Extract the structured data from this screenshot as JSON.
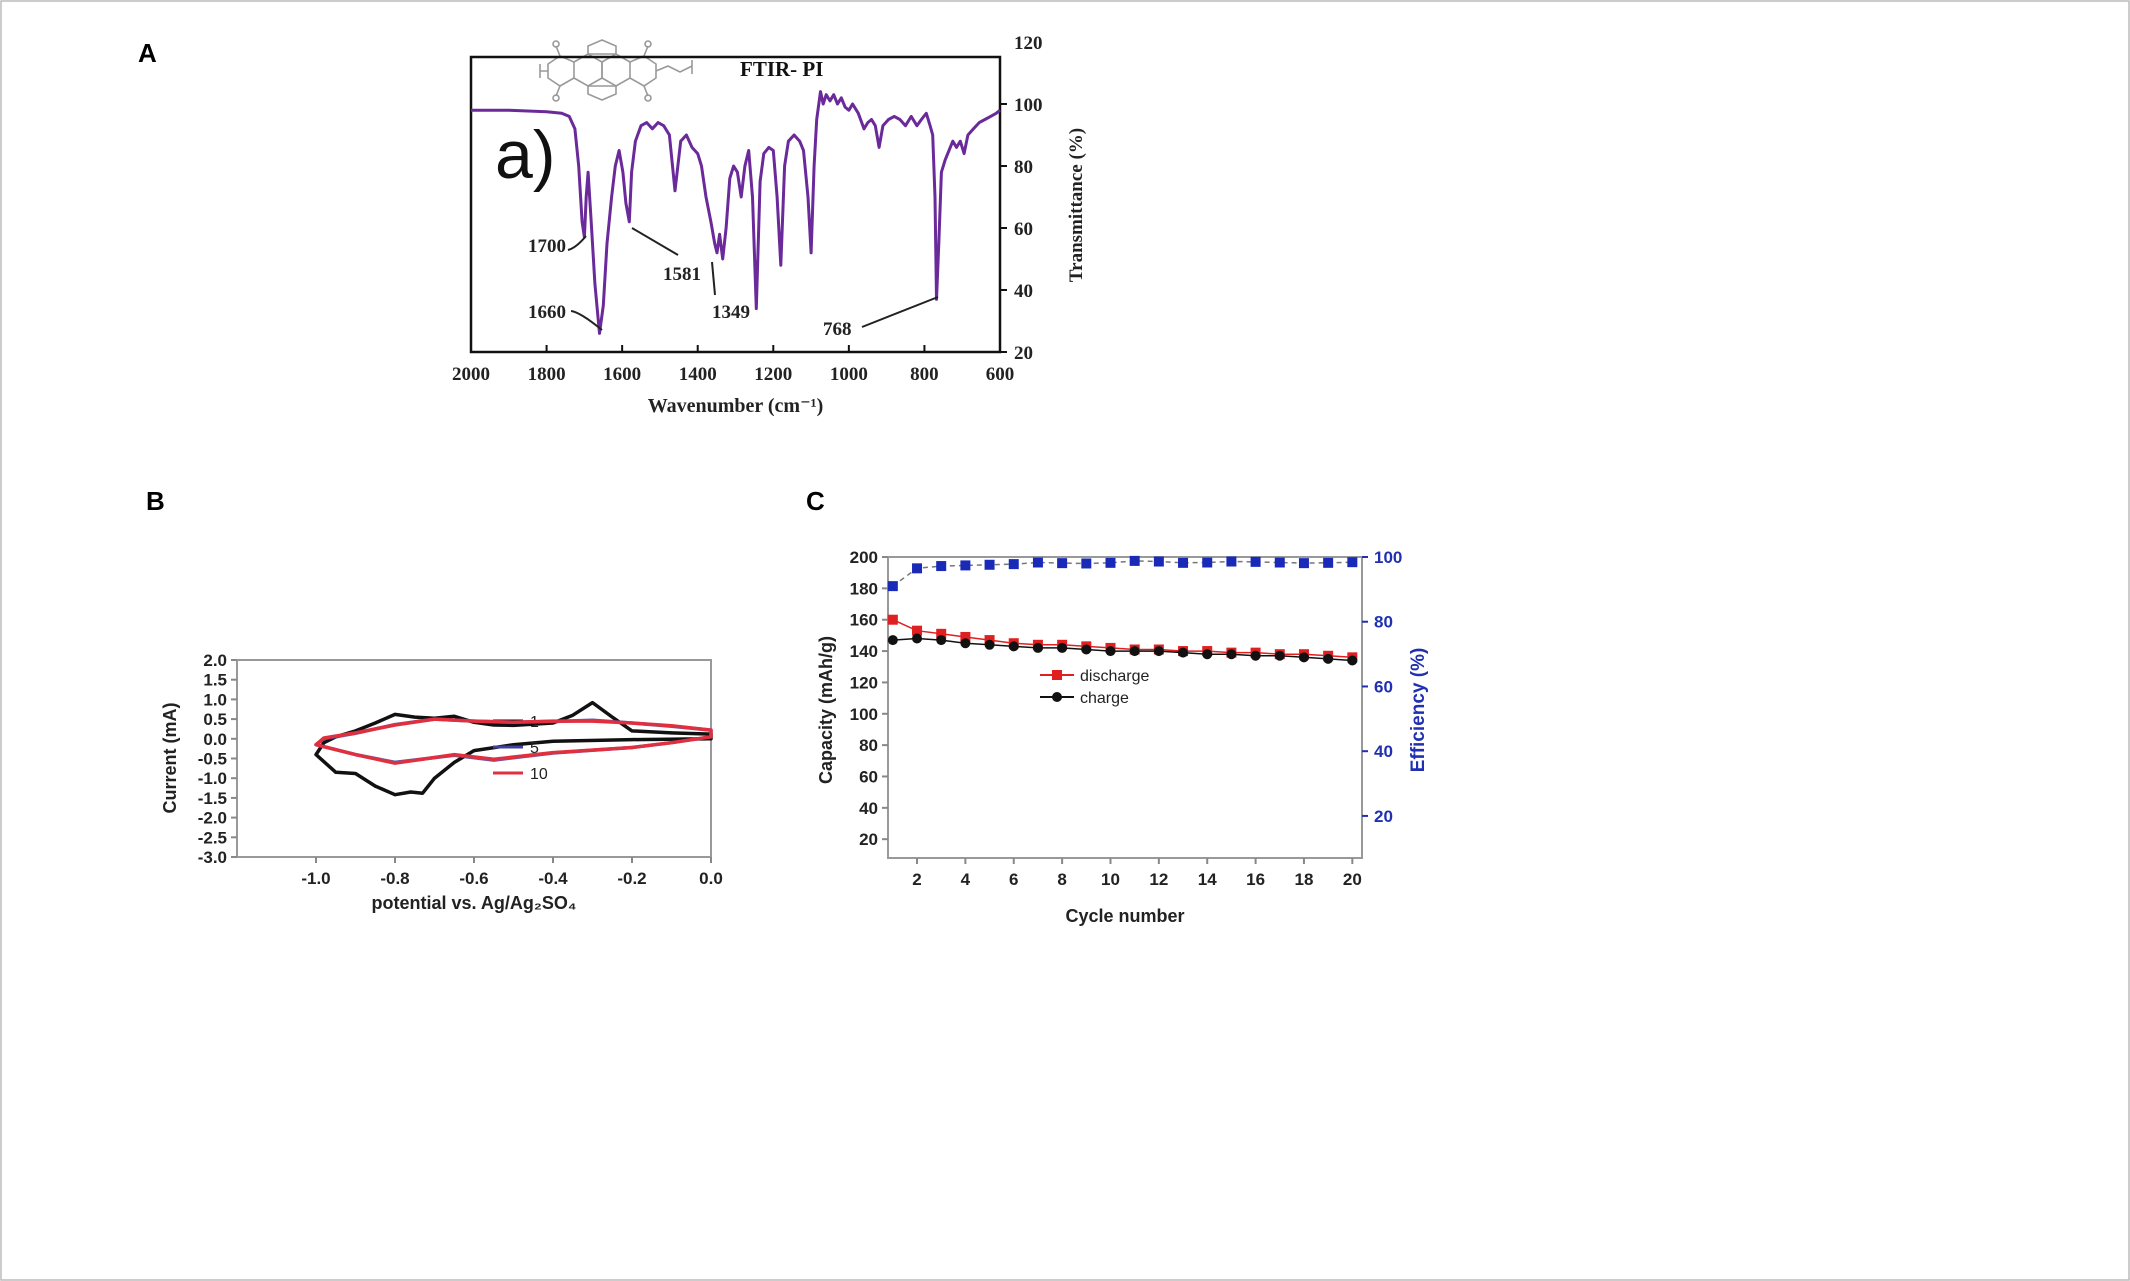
{
  "panel_labels": {
    "a": "A",
    "b": "B",
    "c": "C"
  },
  "chart_data": [
    {
      "type": "line",
      "panel": "A",
      "title": "FTIR- PI",
      "inset_label": "a)",
      "xlabel": "Wavenumber (cm⁻¹)",
      "ylabel": "Transmittance (%)",
      "xlim": [
        2000,
        600
      ],
      "ylim": [
        20,
        120
      ],
      "x_ticks": [
        "2000",
        "1800",
        "1600",
        "1400",
        "1200",
        "1000",
        "800",
        "600"
      ],
      "y_ticks": [
        "20",
        "40",
        "60",
        "80",
        "100",
        "120"
      ],
      "y_axis_side": "right",
      "grid": false,
      "line_color": "#6a2a9a",
      "series": [
        {
          "x": [
            2000,
            1900,
            1800,
            1760,
            1740,
            1725,
            1715,
            1706,
            1700,
            1695,
            1690,
            1682,
            1672,
            1660,
            1650,
            1640,
            1628,
            1618,
            1608,
            1598,
            1590,
            1581,
            1575,
            1565,
            1550,
            1535,
            1520,
            1505,
            1490,
            1475,
            1460,
            1445,
            1430,
            1415,
            1400,
            1390,
            1378,
            1365,
            1355,
            1349,
            1342,
            1334,
            1325,
            1315,
            1305,
            1295,
            1285,
            1275,
            1265,
            1255,
            1245,
            1235,
            1225,
            1212,
            1200,
            1190,
            1180,
            1170,
            1160,
            1145,
            1130,
            1120,
            1108,
            1100,
            1092,
            1085,
            1075,
            1068,
            1060,
            1050,
            1040,
            1030,
            1020,
            1010,
            1000,
            990,
            975,
            960,
            950,
            940,
            930,
            920,
            910,
            895,
            880,
            865,
            850,
            835,
            820,
            808,
            795,
            785,
            778,
            772,
            768,
            762,
            755,
            745,
            735,
            725,
            715,
            705,
            695,
            685,
            670,
            655,
            640,
            625,
            610,
            600
          ],
          "y": [
            98,
            98,
            97.5,
            97,
            96,
            92,
            80,
            62,
            57,
            70,
            78,
            62,
            42,
            26,
            35,
            55,
            70,
            80,
            85,
            78,
            68,
            62,
            78,
            88,
            93,
            94,
            92,
            94,
            93,
            90,
            72,
            88,
            90,
            86,
            84,
            80,
            70,
            62,
            55,
            52,
            58,
            50,
            60,
            76,
            80,
            78,
            70,
            80,
            85,
            70,
            34,
            75,
            84,
            86,
            85,
            70,
            48,
            80,
            88,
            90,
            88,
            85,
            70,
            52,
            80,
            95,
            104,
            100,
            103,
            101,
            103,
            100,
            102,
            99,
            98,
            100,
            97,
            92,
            94,
            95,
            93,
            86,
            93,
            95,
            96,
            95,
            93,
            96,
            93,
            95,
            97,
            93,
            90,
            70,
            37,
            55,
            78,
            82,
            85,
            88,
            86,
            88,
            84,
            90,
            92,
            94,
            95,
            96,
            97,
            98
          ]
        }
      ],
      "annotations": [
        "1700",
        "1660",
        "1581",
        "1349",
        "768"
      ]
    },
    {
      "type": "line",
      "panel": "B",
      "xlabel": "potential vs. Ag/Ag₂SO₄",
      "ylabel": "Current (mA)",
      "xlim": [
        -1.2,
        0.0
      ],
      "ylim": [
        -3.0,
        2.0
      ],
      "x_ticks": [
        "-1.0",
        "-0.8",
        "-0.6",
        "-0.4",
        "-0.2",
        "0.0"
      ],
      "y_ticks": [
        "2.0",
        "1.5",
        "1.0",
        "0.5",
        "0.0",
        "-0.5",
        "-1.0",
        "-1.5",
        "-2.0",
        "-2.5",
        "-3.0"
      ],
      "grid": false,
      "legend_position": "center-bottom",
      "series": [
        {
          "name": "1",
          "color": "#111111",
          "x": [
            -1.0,
            -0.98,
            -0.95,
            -0.9,
            -0.85,
            -0.8,
            -0.75,
            -0.7,
            -0.65,
            -0.6,
            -0.55,
            -0.5,
            -0.4,
            -0.35,
            -0.3,
            -0.25,
            -0.2,
            -0.1,
            0.0,
            0.0,
            -0.2,
            -0.4,
            -0.5,
            -0.6,
            -0.65,
            -0.7,
            -0.73,
            -0.76,
            -0.8,
            -0.85,
            -0.9,
            -0.95,
            -1.0
          ],
          "y": [
            -0.4,
            -0.1,
            0.05,
            0.2,
            0.4,
            0.62,
            0.55,
            0.52,
            0.57,
            0.42,
            0.35,
            0.34,
            0.4,
            0.6,
            0.92,
            0.55,
            0.2,
            0.15,
            0.12,
            0.0,
            -0.02,
            -0.06,
            -0.15,
            -0.3,
            -0.6,
            -1.0,
            -1.38,
            -1.35,
            -1.42,
            -1.2,
            -0.88,
            -0.85,
            -0.4
          ]
        },
        {
          "name": "5",
          "color": "#4040a0",
          "x": [
            -1.0,
            -0.98,
            -0.9,
            -0.8,
            -0.7,
            -0.6,
            -0.5,
            -0.4,
            -0.3,
            -0.2,
            -0.1,
            0.0,
            0.0,
            -0.1,
            -0.2,
            -0.4,
            -0.55,
            -0.65,
            -0.8,
            -0.9,
            -1.0
          ],
          "y": [
            -0.15,
            0.0,
            0.14,
            0.36,
            0.5,
            0.45,
            0.42,
            0.44,
            0.47,
            0.4,
            0.32,
            0.22,
            0.05,
            -0.1,
            -0.22,
            -0.36,
            -0.54,
            -0.42,
            -0.6,
            -0.4,
            -0.15
          ]
        },
        {
          "name": "10",
          "color": "#e03040",
          "x": [
            -1.0,
            -0.98,
            -0.9,
            -0.8,
            -0.7,
            -0.6,
            -0.5,
            -0.4,
            -0.3,
            -0.2,
            -0.1,
            0.0,
            0.0,
            -0.1,
            -0.2,
            -0.4,
            -0.55,
            -0.65,
            -0.8,
            -0.9,
            -1.0
          ],
          "y": [
            -0.15,
            0.02,
            0.15,
            0.35,
            0.5,
            0.45,
            0.42,
            0.45,
            0.45,
            0.4,
            0.33,
            0.22,
            0.05,
            -0.1,
            -0.22,
            -0.35,
            -0.52,
            -0.4,
            -0.62,
            -0.4,
            -0.15
          ]
        }
      ]
    },
    {
      "type": "line",
      "panel": "C",
      "xlabel": "Cycle number",
      "ylabel": "Capacity (mAh/g)",
      "ylabel_right": "Efficiency (%)",
      "xlim": [
        0.8,
        20.4
      ],
      "ylim": [
        8,
        200
      ],
      "ylim_right": [
        7,
        100
      ],
      "x_ticks": [
        "2",
        "4",
        "6",
        "8",
        "10",
        "12",
        "14",
        "16",
        "18",
        "20"
      ],
      "y_ticks": [
        "20",
        "40",
        "60",
        "80",
        "100",
        "120",
        "140",
        "160",
        "180",
        "200"
      ],
      "y_ticks_right": [
        "20",
        "40",
        "60",
        "80",
        "100"
      ],
      "grid": false,
      "legend_position": "center",
      "right_axis_color": "#2030b0",
      "x": [
        1,
        2,
        3,
        4,
        5,
        6,
        7,
        8,
        9,
        10,
        11,
        12,
        13,
        14,
        15,
        16,
        17,
        18,
        19,
        20
      ],
      "series": [
        {
          "name": "discharge",
          "color": "#e02020",
          "marker": "square",
          "axis": "left",
          "values": [
            160,
            153,
            151,
            149,
            147,
            145,
            144,
            144,
            143,
            142,
            141,
            141,
            140,
            140,
            139,
            139,
            138,
            138,
            137,
            136
          ]
        },
        {
          "name": "charge",
          "color": "#111111",
          "marker": "circle",
          "axis": "left",
          "values": [
            147,
            148,
            147,
            145,
            144,
            143,
            142,
            142,
            141,
            140,
            140,
            140,
            139,
            138,
            138,
            137,
            137,
            136,
            135,
            134
          ]
        },
        {
          "color": "#1a2ab8",
          "marker": "square",
          "axis": "right",
          "values": [
            91,
            96.5,
            97.2,
            97.4,
            97.6,
            97.8,
            98.3,
            98.1,
            98,
            98.2,
            98.8,
            98.6,
            98.2,
            98.3,
            98.6,
            98.5,
            98.3,
            98.1,
            98.2,
            98.4
          ]
        }
      ]
    }
  ]
}
